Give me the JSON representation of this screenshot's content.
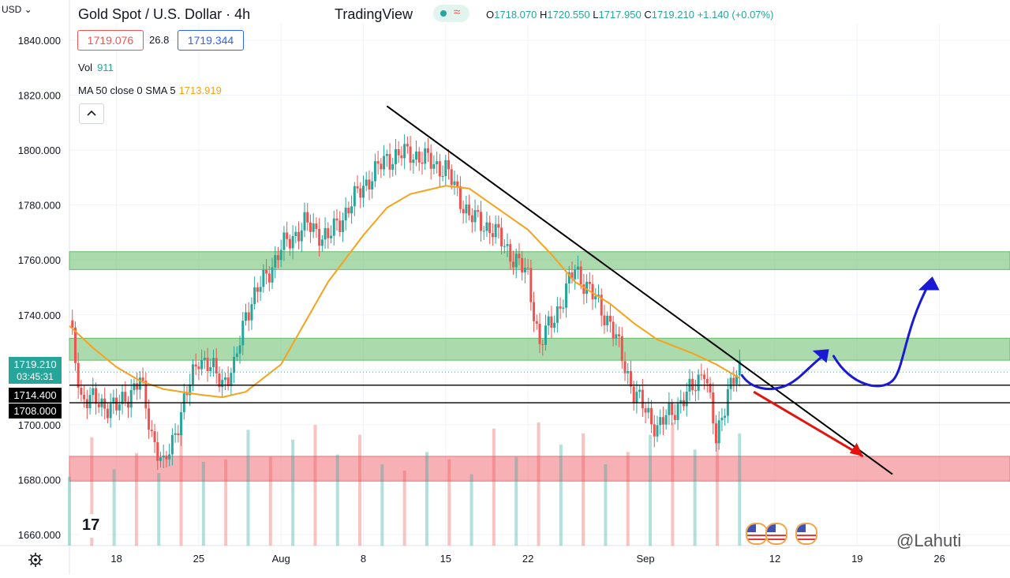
{
  "header": {
    "title": "Gold Spot / U.S. Dollar · 4h",
    "brand": "TradingView",
    "ohlc": {
      "o_label": "O",
      "o": "1718.070",
      "h_label": "H",
      "h": "1720.550",
      "l_label": "L",
      "l": "1717.950",
      "c_label": "C",
      "c": "1719.210",
      "chg": "+1.140 (+0.07%)"
    },
    "bid": "1719.076",
    "spread": "26.8",
    "ask": "1719.344",
    "vol_label": "Vol",
    "vol_value": "911",
    "ma_label": "MA 50 close 0 SMA 5",
    "ma_value": "1713.919",
    "currency": "USD"
  },
  "price_tags": {
    "last_price": "1719.210",
    "countdown": "03:45:31",
    "line1": "1714.400",
    "line2": "1708.000"
  },
  "watermark": "@Lahuti",
  "colors": {
    "up": "#26a69a",
    "down": "#ef5350",
    "ma": "#f7a21b",
    "resistance_zone": "#66bb6a",
    "support_zone": "#f07178",
    "bullish_arrow": "#1a1ad6",
    "bearish_arrow": "#e3140e",
    "trendline": "#000000"
  },
  "icons": [
    "settings-icon",
    "tradingview-logo-icon",
    "chevron-up-icon",
    "us-flag-icon"
  ],
  "chart_data": {
    "type": "line",
    "series": [
      {
        "name": "MA 50 close 0 SMA 5",
        "x": [
          "Jul 14",
          "Jul 16",
          "Jul 18",
          "Jul 20",
          "Jul 22",
          "Jul 25",
          "Jul 27",
          "Jul 29",
          "Aug 1",
          "Aug 3",
          "Aug 5",
          "Aug 8",
          "Aug 10",
          "Aug 12",
          "Aug 15",
          "Aug 17",
          "Aug 19",
          "Aug 22",
          "Aug 24",
          "Aug 26",
          "Aug 29",
          "Aug 31",
          "Sep 2",
          "Sep 5",
          "Sep 7",
          "Sep 9"
        ],
        "values": [
          1736,
          1728,
          1721,
          1716,
          1713,
          1711,
          1710,
          1712,
          1722,
          1737,
          1752,
          1769,
          1779,
          1784,
          1787,
          1786,
          1780,
          1771,
          1762,
          1752,
          1744,
          1737,
          1731,
          1726,
          1722,
          1717
        ]
      }
    ],
    "close_approx": {
      "x": [
        "Jul 14",
        "Jul 15",
        "Jul 18",
        "Jul 20",
        "Jul 21",
        "Jul 22",
        "Jul 25",
        "Jul 27",
        "Jul 28",
        "Jul 29",
        "Aug 1",
        "Aug 3",
        "Aug 5",
        "Aug 8",
        "Aug 10",
        "Aug 12",
        "Aug 15",
        "Aug 17",
        "Aug 19",
        "Aug 22",
        "Aug 23",
        "Aug 25",
        "Aug 26",
        "Aug 29",
        "Aug 31",
        "Sep 1",
        "Sep 2",
        "Sep 5",
        "Sep 6",
        "Sep 7",
        "Sep 8",
        "Sep 9"
      ],
      "values": [
        1738,
        1710,
        1706,
        1716,
        1697,
        1684,
        1725,
        1716,
        1720,
        1741,
        1764,
        1773,
        1768,
        1787,
        1797,
        1799,
        1793,
        1776,
        1771,
        1754,
        1729,
        1746,
        1757,
        1737,
        1712,
        1705,
        1699,
        1713,
        1721,
        1694,
        1713,
        1719
      ]
    },
    "volume_approx": [
      560,
      880,
      620,
      750,
      590,
      910,
      680,
      700,
      940,
      720,
      860,
      980,
      740,
      900,
      660,
      610,
      760,
      700,
      580,
      950,
      720,
      1000,
      820,
      910,
      660,
      760,
      900,
      1000,
      780,
      850,
      911
    ],
    "zones": [
      {
        "type": "resistance",
        "from": 1756.5,
        "to": 1763
      },
      {
        "type": "resistance",
        "from": 1723.5,
        "to": 1731.5
      },
      {
        "type": "support",
        "from": 1679.5,
        "to": 1688.5
      }
    ],
    "horizontal_lines": [
      1714.4,
      1708.0
    ],
    "trendline": {
      "from": {
        "x": "Aug 10",
        "y": 1816
      },
      "to": {
        "x": "Sep 22",
        "y": 1682
      }
    },
    "x_ticks": [
      "18",
      "25",
      "Aug",
      "8",
      "15",
      "22",
      "Sep",
      "12",
      "19",
      "26"
    ],
    "y_ticks": [
      "1840.000",
      "1820.000",
      "1800.000",
      "1780.000",
      "1760.000",
      "1740.000",
      "1720.000",
      "1700.000",
      "1680.000",
      "1660.000"
    ],
    "ylim": [
      1656,
      1846
    ],
    "grid": true,
    "legend": "top-left"
  }
}
